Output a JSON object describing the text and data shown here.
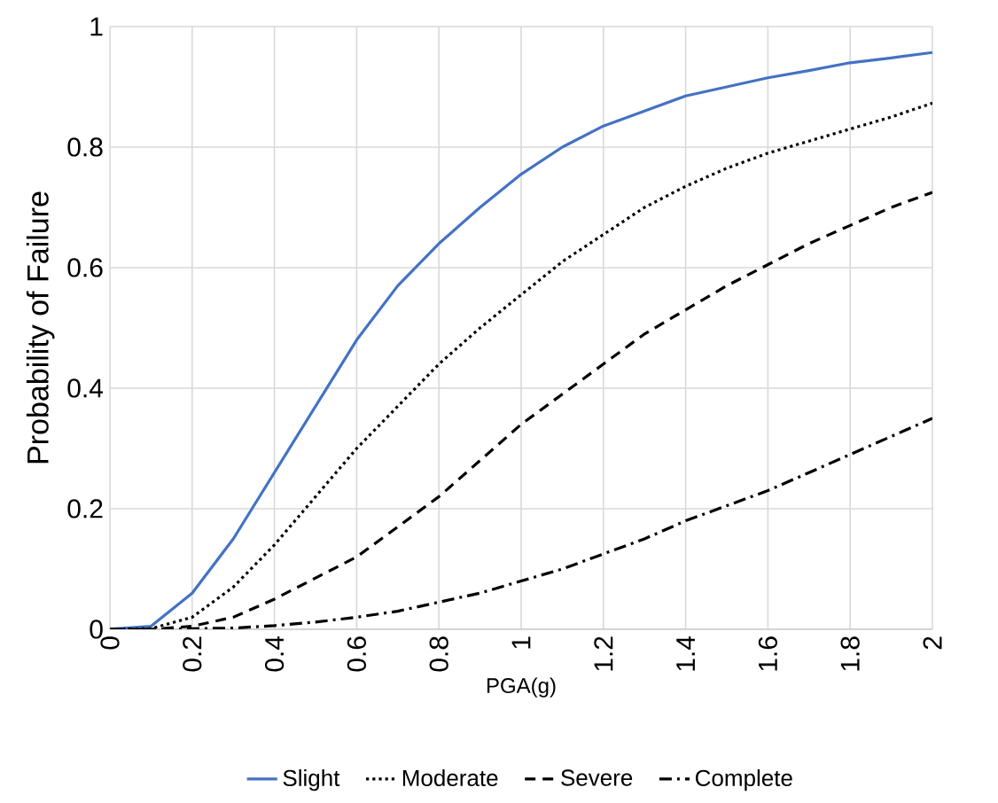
{
  "chart_data": {
    "type": "line",
    "xlabel": "PGA(g)",
    "ylabel": "Probability of Failure",
    "x": [
      0,
      0.1,
      0.2,
      0.3,
      0.4,
      0.5,
      0.6,
      0.7,
      0.8,
      0.9,
      1.0,
      1.1,
      1.2,
      1.3,
      1.4,
      1.5,
      1.6,
      1.7,
      1.8,
      1.9,
      2.0
    ],
    "series": [
      {
        "name": "Slight",
        "color": "#4472c4",
        "line_style": "solid",
        "values": [
          0,
          0.005,
          0.06,
          0.15,
          0.26,
          0.37,
          0.48,
          0.57,
          0.64,
          0.7,
          0.755,
          0.8,
          0.835,
          0.86,
          0.885,
          0.9,
          0.915,
          0.927,
          0.94,
          0.948,
          0.957
        ]
      },
      {
        "name": "Moderate",
        "color": "#000000",
        "line_style": "dotted",
        "values": [
          0,
          0.001,
          0.02,
          0.07,
          0.14,
          0.22,
          0.3,
          0.37,
          0.44,
          0.5,
          0.555,
          0.61,
          0.655,
          0.7,
          0.735,
          0.765,
          0.79,
          0.81,
          0.83,
          0.85,
          0.873
        ]
      },
      {
        "name": "Severe",
        "color": "#000000",
        "line_style": "dashed",
        "values": [
          0,
          0,
          0.005,
          0.02,
          0.05,
          0.085,
          0.12,
          0.17,
          0.22,
          0.28,
          0.34,
          0.39,
          0.44,
          0.49,
          0.53,
          0.57,
          0.605,
          0.64,
          0.67,
          0.7,
          0.725
        ]
      },
      {
        "name": "Complete",
        "color": "#000000",
        "line_style": "dashdot",
        "values": [
          0,
          0,
          0.001,
          0.002,
          0.006,
          0.012,
          0.02,
          0.03,
          0.045,
          0.06,
          0.08,
          0.1,
          0.125,
          0.15,
          0.18,
          0.205,
          0.23,
          0.26,
          0.29,
          0.32,
          0.35
        ]
      }
    ],
    "xlim": [
      0,
      2
    ],
    "xticks": [
      0,
      0.2,
      0.4,
      0.6,
      0.8,
      1,
      1.2,
      1.4,
      1.6,
      1.8,
      2
    ],
    "ylim": [
      0,
      1
    ],
    "yticks": [
      0,
      0.2,
      0.4,
      0.6,
      0.8,
      1
    ],
    "grid": true,
    "legend": "bottom",
    "marker": "none"
  }
}
